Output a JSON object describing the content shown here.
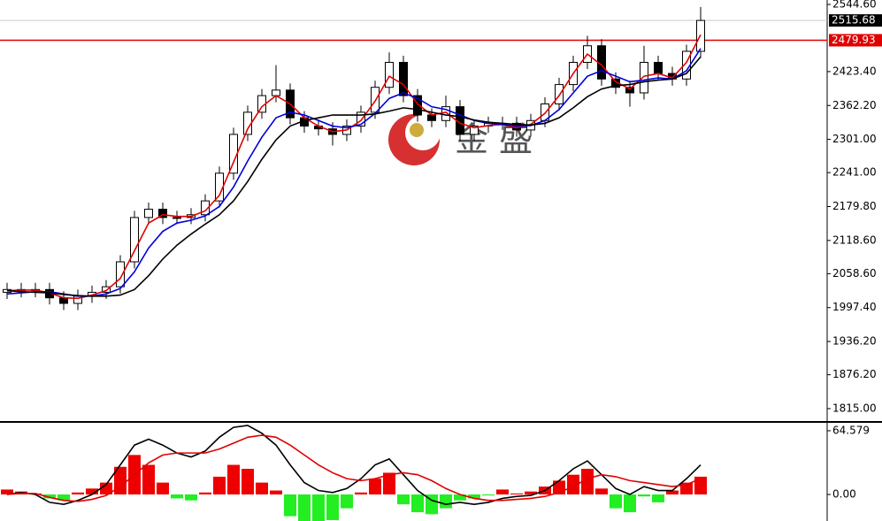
{
  "chart_data": [
    {
      "type": "candlestick",
      "ylim": [
        1792.6,
        2552.6
      ],
      "yticks": [
        {
          "value": 2544.6,
          "label": "2544.60"
        },
        {
          "value": 2423.4,
          "label": "2423.40"
        },
        {
          "value": 2362.2,
          "label": "2362.20"
        },
        {
          "value": 2301,
          "label": "2301.00"
        },
        {
          "value": 2241,
          "label": "2241.00"
        },
        {
          "value": 2179.8,
          "label": "2179.80"
        },
        {
          "value": 2118.6,
          "label": "2118.60"
        },
        {
          "value": 2058.6,
          "label": "2058.60"
        },
        {
          "value": 1997.4,
          "label": "1997.40"
        },
        {
          "value": 1936.2,
          "label": "1936.20"
        },
        {
          "value": 1876.2,
          "label": "1876.20"
        },
        {
          "value": 1815,
          "label": "1815.00"
        }
      ],
      "open": [
        2025,
        2030,
        2028,
        2030,
        2015,
        2005,
        2018,
        2025,
        2035,
        2080,
        2160,
        2175,
        2160,
        2160,
        2165,
        2190,
        2240,
        2310,
        2350,
        2380,
        2390,
        2340,
        2325,
        2320,
        2310,
        2325,
        2350,
        2395,
        2440,
        2380,
        2345,
        2335,
        2360,
        2310,
        2325,
        2330,
        2330,
        2318,
        2335,
        2365,
        2400,
        2440,
        2470,
        2410,
        2395,
        2385,
        2440,
        2420,
        2410,
        2460
      ],
      "high": [
        2042,
        2042,
        2042,
        2042,
        2027,
        2030,
        2037,
        2047,
        2092,
        2172,
        2187,
        2187,
        2172,
        2177,
        2202,
        2252,
        2322,
        2362,
        2392,
        2435,
        2402,
        2352,
        2337,
        2332,
        2337,
        2362,
        2407,
        2458,
        2452,
        2392,
        2357,
        2380,
        2372,
        2337,
        2342,
        2342,
        2342,
        2347,
        2377,
        2412,
        2452,
        2488,
        2482,
        2422,
        2407,
        2470,
        2452,
        2432,
        2472,
        2540
      ],
      "low": [
        2013,
        2016,
        2016,
        2003,
        1993,
        1993,
        2006,
        2013,
        2023,
        2068,
        2148,
        2148,
        2148,
        2148,
        2153,
        2178,
        2228,
        2298,
        2338,
        2368,
        2328,
        2313,
        2308,
        2290,
        2298,
        2313,
        2338,
        2383,
        2368,
        2333,
        2323,
        2323,
        2298,
        2298,
        2313,
        2318,
        2306,
        2306,
        2323,
        2353,
        2388,
        2428,
        2398,
        2383,
        2360,
        2373,
        2408,
        2398,
        2398,
        2448
      ],
      "close": [
        2030,
        2028,
        2030,
        2015,
        2005,
        2018,
        2025,
        2035,
        2080,
        2160,
        2175,
        2160,
        2160,
        2165,
        2190,
        2240,
        2310,
        2350,
        2380,
        2390,
        2340,
        2325,
        2320,
        2310,
        2325,
        2350,
        2395,
        2440,
        2380,
        2345,
        2335,
        2360,
        2310,
        2325,
        2330,
        2330,
        2318,
        2335,
        2365,
        2400,
        2440,
        2470,
        2410,
        2395,
        2385,
        2440,
        2420,
        2410,
        2460,
        2515.68
      ],
      "series": [
        {
          "color": "#e00000",
          "values": [
            2028,
            2029,
            2029,
            2024,
            2015,
            2014,
            2020,
            2028,
            2050,
            2100,
            2150,
            2165,
            2162,
            2162,
            2172,
            2200,
            2260,
            2320,
            2360,
            2380,
            2365,
            2340,
            2325,
            2315,
            2318,
            2335,
            2370,
            2415,
            2400,
            2365,
            2345,
            2350,
            2330,
            2322,
            2326,
            2328,
            2322,
            2328,
            2348,
            2380,
            2420,
            2455,
            2435,
            2405,
            2392,
            2415,
            2420,
            2412,
            2440,
            2490
          ]
        },
        {
          "color": "#0000dd",
          "values": [
            2022,
            2024,
            2026,
            2026,
            2022,
            2018,
            2018,
            2022,
            2032,
            2062,
            2105,
            2135,
            2150,
            2155,
            2163,
            2180,
            2215,
            2262,
            2305,
            2340,
            2350,
            2345,
            2335,
            2325,
            2322,
            2328,
            2348,
            2375,
            2385,
            2375,
            2360,
            2355,
            2345,
            2335,
            2330,
            2328,
            2325,
            2326,
            2335,
            2355,
            2385,
            2415,
            2425,
            2415,
            2405,
            2408,
            2412,
            2410,
            2425,
            2465
          ]
        },
        {
          "color": "#000000",
          "values": [
            2028,
            2026,
            2025,
            2024,
            2021,
            2019,
            2018,
            2018,
            2020,
            2030,
            2055,
            2085,
            2110,
            2130,
            2148,
            2165,
            2190,
            2225,
            2265,
            2300,
            2325,
            2335,
            2340,
            2345,
            2345,
            2345,
            2347,
            2352,
            2358,
            2355,
            2350,
            2345,
            2342,
            2336,
            2332,
            2330,
            2328,
            2327,
            2330,
            2340,
            2358,
            2378,
            2392,
            2398,
            2400,
            2405,
            2408,
            2410,
            2420,
            2450
          ]
        }
      ],
      "current_price": 2515.68,
      "price_line": {
        "value": 2479.93,
        "color": "#e00000"
      },
      "watermark": "金 盛"
    },
    {
      "type": "macd",
      "ylim": [
        -26.9,
        72.6
      ],
      "yticks": [
        64.579,
        {
          "value": 0,
          "label": "0.00"
        }
      ],
      "histogram": {
        "up_color": "#ee0000",
        "down_color": "#22ee22",
        "values": [
          5,
          3,
          1,
          -4,
          -6,
          2,
          6,
          12,
          28,
          40,
          30,
          12,
          -4,
          -6,
          2,
          18,
          30,
          26,
          12,
          4,
          -22,
          -30,
          -30,
          -26,
          -14,
          2,
          16,
          22,
          -10,
          -18,
          -20,
          -14,
          -6,
          -4,
          -1,
          5,
          1,
          3,
          8,
          14,
          20,
          26,
          6,
          -14,
          -18,
          -2,
          -8,
          4,
          12,
          18
        ]
      },
      "series": [
        {
          "color": "#000000",
          "values": [
            0,
            2,
            0,
            -8,
            -10,
            -6,
            0,
            10,
            30,
            50,
            56,
            50,
            42,
            38,
            44,
            58,
            68,
            70,
            62,
            50,
            30,
            12,
            4,
            2,
            6,
            16,
            30,
            36,
            20,
            4,
            -6,
            -10,
            -8,
            -10,
            -8,
            -4,
            -2,
            -1,
            4,
            14,
            26,
            34,
            20,
            6,
            0,
            8,
            4,
            4,
            16,
            30
          ]
        },
        {
          "color": "#e00000",
          "values": [
            0,
            1,
            1,
            -3,
            -6,
            -7,
            -5,
            -1,
            8,
            20,
            32,
            40,
            42,
            42,
            42,
            46,
            52,
            58,
            60,
            58,
            50,
            40,
            30,
            22,
            16,
            14,
            16,
            20,
            22,
            20,
            14,
            6,
            0,
            -4,
            -6,
            -6,
            -5,
            -4,
            -2,
            2,
            8,
            16,
            20,
            18,
            14,
            12,
            10,
            8,
            10,
            16
          ]
        }
      ]
    }
  ]
}
